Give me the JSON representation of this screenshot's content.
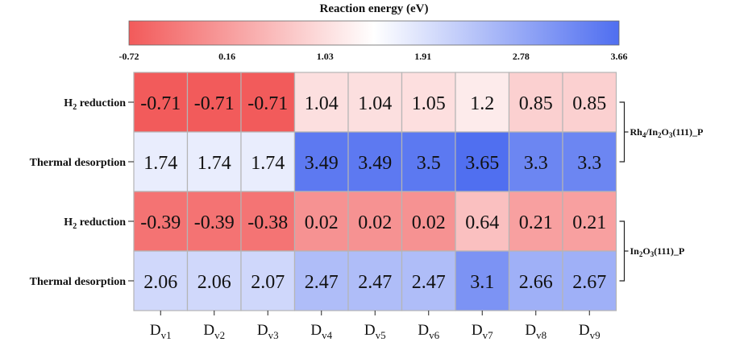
{
  "chart_data": {
    "type": "heatmap",
    "colorbar": {
      "title": "Reaction energy (eV)",
      "ticks": [
        "-0.72",
        "0.16",
        "1.03",
        "1.91",
        "2.78",
        "3.66"
      ],
      "min": -0.72,
      "max": 3.66,
      "colors": {
        "low": "#f25a5a",
        "mid": "#ffffff",
        "high": "#4f6ef0"
      }
    },
    "columns": [
      {
        "main": "D",
        "sub": "v1"
      },
      {
        "main": "D",
        "sub": "v2"
      },
      {
        "main": "D",
        "sub": "v3"
      },
      {
        "main": "D",
        "sub": "v4"
      },
      {
        "main": "D",
        "sub": "v5"
      },
      {
        "main": "D",
        "sub": "v6"
      },
      {
        "main": "D",
        "sub": "v7"
      },
      {
        "main": "D",
        "sub": "v8"
      },
      {
        "main": "D",
        "sub": "v9"
      }
    ],
    "rows": [
      {
        "label": {
          "main": "H",
          "sub": "2",
          "rest": " reduction"
        },
        "values": [
          "-0.71",
          "-0.71",
          "-0.71",
          "1.04",
          "1.04",
          "1.05",
          "1.2",
          "0.85",
          "0.85"
        ]
      },
      {
        "label": {
          "main": "Thermal desorption",
          "sub": "",
          "rest": ""
        },
        "values": [
          "1.74",
          "1.74",
          "1.74",
          "3.49",
          "3.49",
          "3.5",
          "3.65",
          "3.3",
          "3.3"
        ]
      },
      {
        "label": {
          "main": "H",
          "sub": "2",
          "rest": " reduction"
        },
        "values": [
          "-0.39",
          "-0.39",
          "-0.38",
          "0.02",
          "0.02",
          "0.02",
          "0.64",
          "0.21",
          "0.21"
        ]
      },
      {
        "label": {
          "main": "Thermal desorption",
          "sub": "",
          "rest": ""
        },
        "values": [
          "2.06",
          "2.06",
          "2.07",
          "2.47",
          "2.47",
          "2.47",
          "3.1",
          "2.66",
          "2.67"
        ]
      }
    ],
    "groups": [
      {
        "parts": [
          [
            "Rh",
            ""
          ],
          [
            "4",
            "sub"
          ],
          [
            "/In",
            ""
          ],
          [
            "2",
            "sub"
          ],
          [
            "O",
            ""
          ],
          [
            "3",
            "sub"
          ],
          [
            "(111)_P",
            ""
          ]
        ],
        "rows": [
          0,
          1
        ]
      },
      {
        "parts": [
          [
            "In",
            ""
          ],
          [
            "2",
            "sub"
          ],
          [
            "O",
            ""
          ],
          [
            "3",
            "sub"
          ],
          [
            "(111)_P",
            ""
          ]
        ],
        "rows": [
          2,
          3
        ]
      }
    ]
  }
}
